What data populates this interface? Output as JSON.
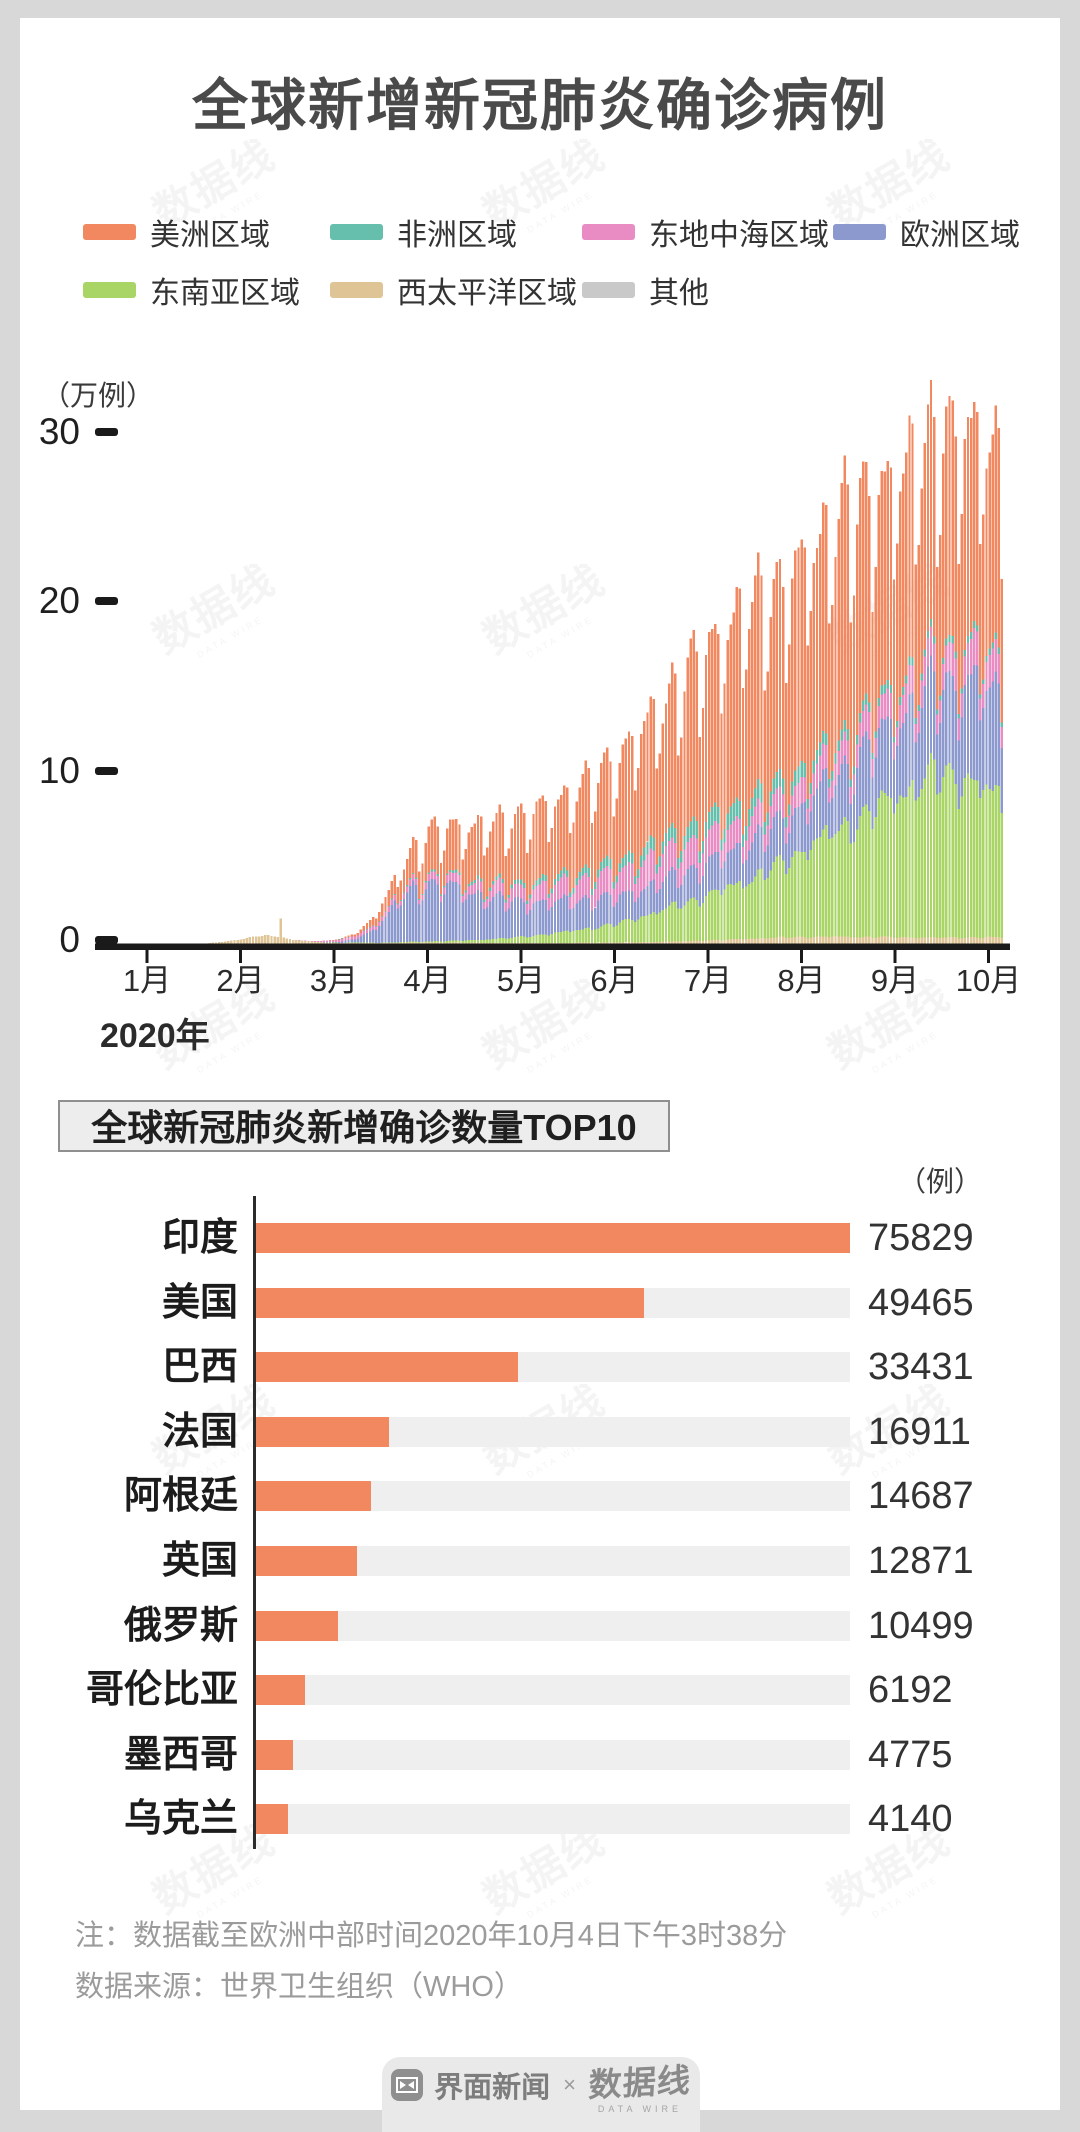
{
  "page": {
    "title": "全球新增新冠肺炎确诊病例",
    "background": "#d8d8d8",
    "card_background": "#ffffff"
  },
  "legend": {
    "items": [
      "美洲区域",
      "非洲区域",
      "东地中海区域",
      "欧洲区域",
      "东南亚区域",
      "西太平洋区域",
      "其他"
    ]
  },
  "chart_data": [
    {
      "type": "bar",
      "subtype": "stacked-daily-vertical",
      "title": "全球新增新冠肺炎确诊病例",
      "y_axis": {
        "unit": "（万例）",
        "ticks": [
          0,
          10,
          20,
          30
        ],
        "ylim": [
          0,
          33
        ]
      },
      "x_axis": {
        "year_label": "2020年",
        "months": [
          "1月",
          "2月",
          "3月",
          "4月",
          "5月",
          "6月",
          "7月",
          "8月",
          "9月",
          "10月"
        ],
        "start_date": "2020-01-01",
        "end_date": "2020-10-04",
        "days": 278
      },
      "grid": false,
      "legend_position": "top",
      "values_unit": "万例 (10k cases/day), approximate values read from chart; series listed bottom-to-top in stack order; points are [day_index, value] control points interpolated daily",
      "weekday_factors": [
        0.72,
        0.8,
        0.96,
        1.04,
        1.08,
        1.12,
        1.06
      ],
      "series": [
        {
          "name": "其他",
          "color": "#c9c9c9",
          "weekly": "soft",
          "points": [
            [
              0,
              0
            ],
            [
              60,
              0.005
            ],
            [
              120,
              0.01
            ],
            [
              200,
              0.02
            ],
            [
              277,
              0.02
            ]
          ]
        },
        {
          "name": "西太平洋区域",
          "color": "#dfc596",
          "weekly": "soft",
          "points": [
            [
              0,
              0.005
            ],
            [
              14,
              0.01
            ],
            [
              20,
              0.05
            ],
            [
              26,
              0.18
            ],
            [
              31,
              0.3
            ],
            [
              34,
              0.42
            ],
            [
              38,
              0.5
            ],
            [
              42,
              0.45
            ],
            [
              46,
              0.3
            ],
            [
              50,
              0.18
            ],
            [
              56,
              0.1
            ],
            [
              62,
              0.06
            ],
            [
              75,
              0.05
            ],
            [
              91,
              0.08
            ],
            [
              105,
              0.06
            ],
            [
              121,
              0.05
            ],
            [
              140,
              0.06
            ],
            [
              152,
              0.07
            ],
            [
              168,
              0.12
            ],
            [
              182,
              0.2
            ],
            [
              196,
              0.3
            ],
            [
              208,
              0.38
            ],
            [
              220,
              0.42
            ],
            [
              232,
              0.4
            ],
            [
              244,
              0.38
            ],
            [
              260,
              0.36
            ],
            [
              277,
              0.38
            ]
          ],
          "spikes": {
            "43": 1.55
          }
        },
        {
          "name": "东南亚区域",
          "color": "#a8d566",
          "weekly": "soft",
          "points": [
            [
              0,
              0
            ],
            [
              50,
              0.003
            ],
            [
              60,
              0.01
            ],
            [
              75,
              0.03
            ],
            [
              91,
              0.07
            ],
            [
              105,
              0.15
            ],
            [
              121,
              0.35
            ],
            [
              135,
              0.65
            ],
            [
              152,
              1.1
            ],
            [
              167,
              1.9
            ],
            [
              182,
              2.7
            ],
            [
              196,
              3.6
            ],
            [
              206,
              4.4
            ],
            [
              213,
              5.3
            ],
            [
              221,
              6.1
            ],
            [
              228,
              6.7
            ],
            [
              236,
              7.6
            ],
            [
              244,
              8.6
            ],
            [
              252,
              9.3
            ],
            [
              258,
              9.8
            ],
            [
              264,
              9.5
            ],
            [
              270,
              8.9
            ],
            [
              277,
              8.3
            ]
          ]
        },
        {
          "name": "欧洲区域",
          "color": "#8c99ce",
          "weekly": "full",
          "points": [
            [
              0,
              0
            ],
            [
              54,
              0.005
            ],
            [
              62,
              0.05
            ],
            [
              68,
              0.25
            ],
            [
              74,
              0.9
            ],
            [
              80,
              2.2
            ],
            [
              86,
              3.1
            ],
            [
              91,
              3.4
            ],
            [
              97,
              3.3
            ],
            [
              105,
              2.8
            ],
            [
              113,
              2.35
            ],
            [
              121,
              2.05
            ],
            [
              130,
              1.9
            ],
            [
              140,
              1.75
            ],
            [
              152,
              1.6
            ],
            [
              162,
              1.65
            ],
            [
              172,
              1.8
            ],
            [
              182,
              1.95
            ],
            [
              192,
              2.1
            ],
            [
              203,
              2.4
            ],
            [
              213,
              2.7
            ],
            [
              223,
              3.1
            ],
            [
              233,
              3.9
            ],
            [
              244,
              4.5
            ],
            [
              252,
              4.9
            ],
            [
              259,
              5.3
            ],
            [
              266,
              5.7
            ],
            [
              271,
              6.0
            ],
            [
              277,
              5.8
            ]
          ]
        },
        {
          "name": "东地中海区域",
          "color": "#e88cc3",
          "weekly": "full",
          "points": [
            [
              0,
              0
            ],
            [
              48,
              0.005
            ],
            [
              55,
              0.05
            ],
            [
              62,
              0.12
            ],
            [
              70,
              0.22
            ],
            [
              80,
              0.3
            ],
            [
              91,
              0.42
            ],
            [
              100,
              0.5
            ],
            [
              110,
              0.62
            ],
            [
              121,
              0.82
            ],
            [
              131,
              1.0
            ],
            [
              141,
              1.2
            ],
            [
              152,
              1.45
            ],
            [
              162,
              1.6
            ],
            [
              170,
              1.65
            ],
            [
              182,
              1.55
            ],
            [
              192,
              1.45
            ],
            [
              203,
              1.35
            ],
            [
              213,
              1.3
            ],
            [
              223,
              1.35
            ],
            [
              233,
              1.4
            ],
            [
              244,
              1.5
            ],
            [
              254,
              1.6
            ],
            [
              264,
              1.75
            ],
            [
              270,
              1.85
            ],
            [
              277,
              1.8
            ]
          ]
        },
        {
          "name": "非洲区域",
          "color": "#66bfac",
          "weekly": "full",
          "points": [
            [
              0,
              0
            ],
            [
              55,
              0.002
            ],
            [
              70,
              0.02
            ],
            [
              91,
              0.09
            ],
            [
              105,
              0.16
            ],
            [
              121,
              0.26
            ],
            [
              135,
              0.38
            ],
            [
              152,
              0.55
            ],
            [
              162,
              0.68
            ],
            [
              172,
              0.85
            ],
            [
              182,
              0.95
            ],
            [
              190,
              1.02
            ],
            [
              198,
              1.0
            ],
            [
              206,
              0.9
            ],
            [
              213,
              0.8
            ],
            [
              222,
              0.68
            ],
            [
              231,
              0.55
            ],
            [
              244,
              0.45
            ],
            [
              256,
              0.4
            ],
            [
              266,
              0.37
            ],
            [
              277,
              0.35
            ]
          ]
        },
        {
          "name": "美洲区域",
          "color": "#f1885f",
          "weekly": "full",
          "points": [
            [
              0,
              0
            ],
            [
              56,
              0.003
            ],
            [
              62,
              0.03
            ],
            [
              68,
              0.15
            ],
            [
              74,
              0.5
            ],
            [
              80,
              1.1
            ],
            [
              86,
              1.9
            ],
            [
              91,
              2.5
            ],
            [
              98,
              2.8
            ],
            [
              105,
              3.1
            ],
            [
              112,
              3.5
            ],
            [
              121,
              3.9
            ],
            [
              130,
              4.3
            ],
            [
              140,
              4.9
            ],
            [
              152,
              6.0
            ],
            [
              160,
              7.0
            ],
            [
              168,
              8.0
            ],
            [
              176,
              9.2
            ],
            [
              184,
              10.3
            ],
            [
              192,
              11.0
            ],
            [
              199,
              11.5
            ],
            [
              206,
              11.2
            ],
            [
              213,
              12.0
            ],
            [
              220,
              12.6
            ],
            [
              227,
              12.9
            ],
            [
              234,
              12.5
            ],
            [
              241,
              12.1
            ],
            [
              248,
              12.3
            ],
            [
              255,
              12.5
            ],
            [
              262,
              12.1
            ],
            [
              268,
              12.5
            ],
            [
              273,
              11.9
            ],
            [
              277,
              11.2
            ]
          ]
        }
      ]
    },
    {
      "type": "bar",
      "subtype": "horizontal-ranked",
      "title": "全球新冠肺炎新增确诊数量TOP10",
      "unit": "（例）",
      "categories": [
        "印度",
        "美国",
        "巴西",
        "法国",
        "阿根廷",
        "英国",
        "俄罗斯",
        "哥伦比亚",
        "墨西哥",
        "乌克兰"
      ],
      "values": [
        75829,
        49465,
        33431,
        16911,
        14687,
        12871,
        10499,
        6192,
        4775,
        4140
      ],
      "max": 75829,
      "bar_color": "#f1885f",
      "track_color": "#efefef"
    }
  ],
  "notes": [
    "注：数据截至欧洲中部时间2020年10月4日下午3时38分",
    "数据来源：世界卫生组织（WHO）"
  ],
  "footer": {
    "brand1": "界面新闻",
    "separator": "×",
    "brand2": "数据线",
    "brand2_sub": "DATA WIRE"
  },
  "watermark": {
    "text": "数据线",
    "subtext": "DATA WIRE"
  }
}
